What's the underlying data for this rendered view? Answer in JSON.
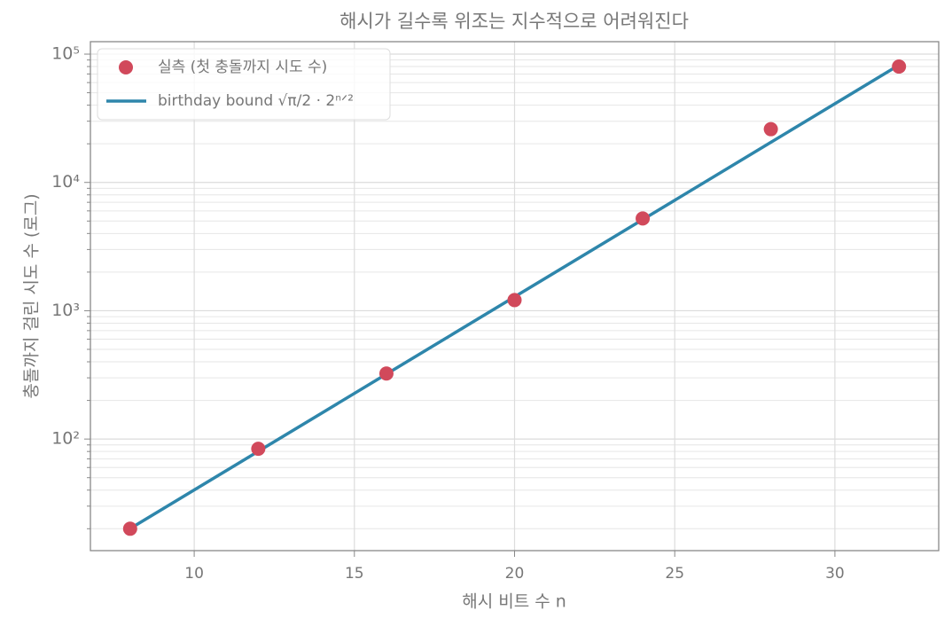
{
  "chart_data": {
    "type": "scatter",
    "title": "해시가 길수록 위조는 지수적으로 어려워진다",
    "xlabel": "해시 비트 수 n",
    "ylabel": "충돌까지 걸린 시도 수 (로그)",
    "x": [
      8,
      12,
      16,
      20,
      24,
      28,
      32
    ],
    "series": [
      {
        "name": "실측 (첫 충돌까지 시도 수)",
        "type": "scatter",
        "color": "#d1495b",
        "values": [
          20,
          84,
          324,
          1211,
          5240,
          26000,
          80000
        ]
      },
      {
        "name": "birthday bound √π/2 · 2ⁿᐟ²",
        "type": "line",
        "color": "#2e86ab",
        "values": [
          20.05,
          80.2,
          320.8,
          1283,
          5133,
          20532,
          82137
        ]
      }
    ],
    "xlim": [
      6.76,
      33.24
    ],
    "xticks": [
      10,
      15,
      20,
      25,
      30
    ],
    "ylim": [
      13.5,
      125000
    ],
    "log_y": true,
    "yticks": [
      {
        "value": 100,
        "label": "10²"
      },
      {
        "value": 1000,
        "label": "10³"
      },
      {
        "value": 10000,
        "label": "10⁴"
      },
      {
        "value": 100000,
        "label": "10⁵"
      }
    ],
    "yminorticks": [
      20,
      30,
      40,
      50,
      60,
      70,
      80,
      90,
      200,
      300,
      400,
      500,
      600,
      700,
      800,
      900,
      2000,
      3000,
      4000,
      5000,
      6000,
      7000,
      8000,
      9000,
      20000,
      30000,
      40000,
      50000,
      60000,
      70000,
      80000,
      90000
    ],
    "grid": true,
    "legend": "upper left"
  }
}
